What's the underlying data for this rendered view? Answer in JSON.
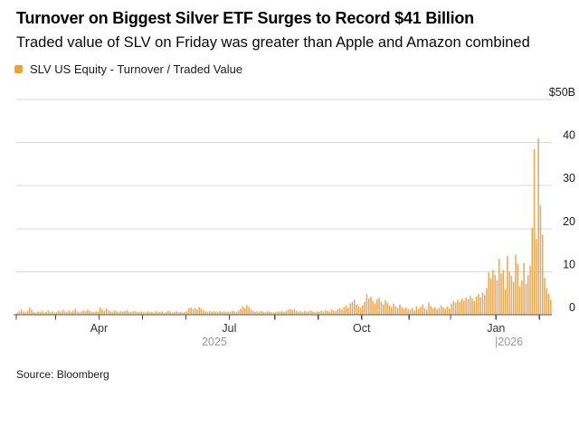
{
  "header": {
    "title": "Turnover on Biggest Silver ETF Surges to Record $41 Billion",
    "subtitle": "Traded value of SLV on Friday was greater than Apple and Amazon combined"
  },
  "legend": {
    "label": "SLV US Equity - Turnover / Traded Value",
    "swatch_color": "#E8A33D"
  },
  "source": "Source: Bloomberg",
  "colors": {
    "bar": "#EAA855",
    "grid": "#D8D8D8",
    "axis": "#5E5E5E",
    "tick": "#4A4A4A",
    "month_label": "#333333",
    "year_label": "#9A9A9A",
    "value_label": "#1A1A1A"
  },
  "chart_data": {
    "type": "bar",
    "series_name": "SLV US Equity - Turnover / Traded Value",
    "unit": "$B",
    "ylim": [
      0,
      50
    ],
    "yticks": [
      0,
      10,
      20,
      30,
      40
    ],
    "ytop_label": "$50B",
    "grid": "horizontal",
    "legend_position": "top-left",
    "x_range": "Feb 2025 - Feb 2026",
    "month_ticks": [
      {
        "index": 0,
        "label": ""
      },
      {
        "index": 19,
        "label": ""
      },
      {
        "index": 40,
        "label": "Apr"
      },
      {
        "index": 61,
        "label": ""
      },
      {
        "index": 82,
        "label": ""
      },
      {
        "index": 103,
        "label": "Jul"
      },
      {
        "index": 125,
        "label": ""
      },
      {
        "index": 146,
        "label": ""
      },
      {
        "index": 167,
        "label": "Oct"
      },
      {
        "index": 190,
        "label": ""
      },
      {
        "index": 210,
        "label": ""
      },
      {
        "index": 232,
        "label": "Jan"
      },
      {
        "index": 253,
        "label": ""
      }
    ],
    "year_labels": [
      {
        "text": "2025",
        "x": 237,
        "anchor": "middle"
      },
      {
        "text": "|2026",
        "x": 547,
        "anchor": "start"
      }
    ],
    "values": [
      0.5,
      0.8,
      1.2,
      0.7,
      0.5,
      0.9,
      1.7,
      1.1,
      0.6,
      0.5,
      0.8,
      0.6,
      0.9,
      0.5,
      0.7,
      1.0,
      0.6,
      0.8,
      0.5,
      0.6,
      0.9,
      0.7,
      1.1,
      0.8,
      0.6,
      1.0,
      0.7,
      0.9,
      1.4,
      0.8,
      0.6,
      0.7,
      1.0,
      0.8,
      1.2,
      0.9,
      0.7,
      0.6,
      0.8,
      0.7,
      1.7,
      1.3,
      0.9,
      1.5,
      1.1,
      0.8,
      0.7,
      1.0,
      0.8,
      0.6,
      0.9,
      0.7,
      0.8,
      1.1,
      0.7,
      0.6,
      0.8,
      0.9,
      0.7,
      0.6,
      0.8,
      0.6,
      0.5,
      0.8,
      0.6,
      0.7,
      0.5,
      0.9,
      0.7,
      0.6,
      0.8,
      0.5,
      0.6,
      0.9,
      0.7,
      0.5,
      0.6,
      0.8,
      0.6,
      0.7,
      0.5,
      0.6,
      0.9,
      1.5,
      1.7,
      1.3,
      1.6,
      1.2,
      1.8,
      1.4,
      1.0,
      0.8,
      0.7,
      0.9,
      0.6,
      0.8,
      0.7,
      0.6,
      0.9,
      0.7,
      0.8,
      0.6,
      0.7,
      0.7,
      0.9,
      0.8,
      0.6,
      1.0,
      1.4,
      2.0,
      1.6,
      2.2,
      1.8,
      1.3,
      0.9,
      0.7,
      0.8,
      0.6,
      0.9,
      0.7,
      0.6,
      0.8,
      0.7,
      0.6,
      0.5,
      0.6,
      0.8,
      0.7,
      0.9,
      0.6,
      0.8,
      1.2,
      1.4,
      1.1,
      1.3,
      0.9,
      0.7,
      0.8,
      0.6,
      0.9,
      0.7,
      0.8,
      1.0,
      0.7,
      0.6,
      0.8,
      0.7,
      0.9,
      0.8,
      1.1,
      0.9,
      0.7,
      1.2,
      1.0,
      0.8,
      1.3,
      1.5,
      1.2,
      1.8,
      2.2,
      1.6,
      2.6,
      3.0,
      3.5,
      2.4,
      2.0,
      1.7,
      2.2,
      3.0,
      4.8,
      3.8,
      4.2,
      3.2,
      2.6,
      3.6,
      4.0,
      3.0,
      2.4,
      3.4,
      2.8,
      2.2,
      1.8,
      2.6,
      2.0,
      1.6,
      2.4,
      1.8,
      1.4,
      1.7,
      1.3,
      1.2,
      1.6,
      1.0,
      2.0,
      1.4,
      1.8,
      2.4,
      1.6,
      1.2,
      2.8,
      2.0,
      1.5,
      1.8,
      1.3,
      1.6,
      2.2,
      1.7,
      1.4,
      1.9,
      1.5,
      2.6,
      3.2,
      2.8,
      3.5,
      3.0,
      3.8,
      3.3,
      4.0,
      3.6,
      4.4,
      3.8,
      3.2,
      4.2,
      4.8,
      4.0,
      5.2,
      4.6,
      6.2,
      9.8,
      8.4,
      10.4,
      9.2,
      8.0,
      13.0,
      9.6,
      10.4,
      6.0,
      13.6,
      10.0,
      9.0,
      7.6,
      14.0,
      11.8,
      6.6,
      8.0,
      12.0,
      7.2,
      9.2,
      11.4,
      20.2,
      38.5,
      17.6,
      41.0,
      25.4,
      18.6,
      8.6,
      6.2,
      4.8,
      3.5
    ]
  }
}
